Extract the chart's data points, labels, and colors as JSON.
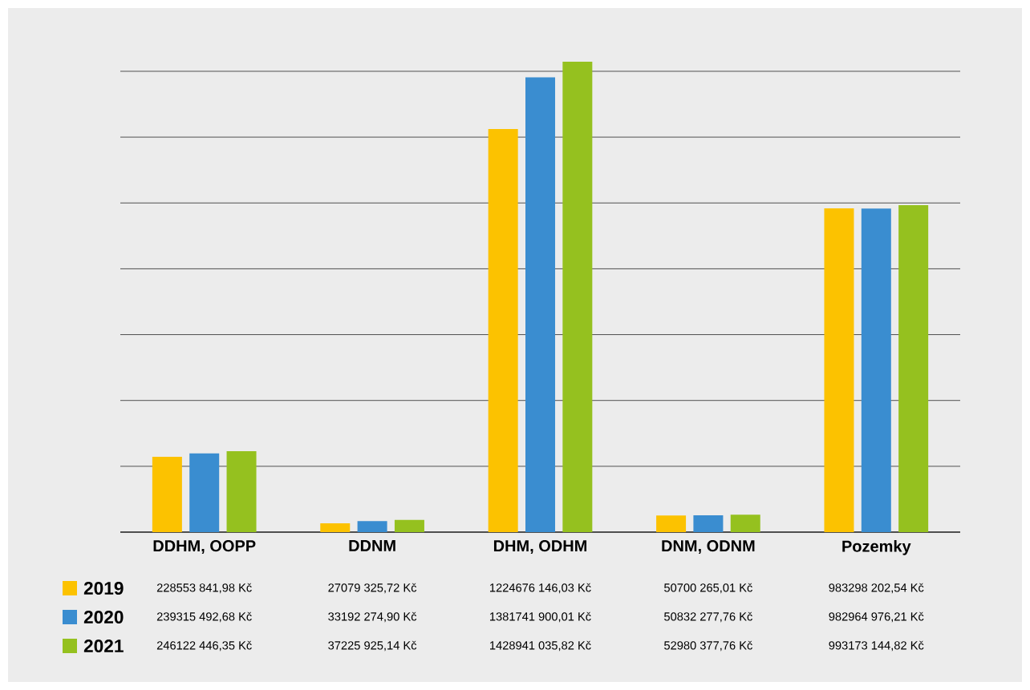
{
  "chart_data": {
    "type": "bar",
    "categories": [
      "DDHM, OOPP",
      "DDNM",
      "DHM, ODHM",
      "DNM, ODNM",
      "Pozemky"
    ],
    "series": [
      {
        "name": "2019",
        "color": "#fcc200",
        "values": [
          228553841.98,
          27079325.72,
          1224676146.03,
          50700265.01,
          983298202.54
        ],
        "value_labels": [
          "228553 841,98 Kč",
          "27079 325,72 Kč",
          "1224676 146,03 Kč",
          "50700 265,01 Kč",
          "983298 202,54 Kč"
        ]
      },
      {
        "name": "2020",
        "color": "#3a8dd0",
        "values": [
          239315492.68,
          33192274.9,
          1381741900.01,
          50832277.76,
          982964976.21
        ],
        "value_labels": [
          "239315 492,68 Kč",
          "33192 274,90 Kč",
          "1381741 900,01 Kč",
          "50832 277,76 Kč",
          "982964 976,21 Kč"
        ]
      },
      {
        "name": "2021",
        "color": "#95c11f",
        "values": [
          246122446.35,
          37225925.14,
          1428941035.82,
          52980377.76,
          993173144.82
        ],
        "value_labels": [
          "246122 446,35 Kč",
          "37225 925,14 Kč",
          "1428941 035,82 Kč",
          "52980 377,76 Kč",
          "993173 144,82 Kč"
        ]
      }
    ],
    "yticks": [
      {
        "value": 0,
        "label": null
      },
      {
        "value": 200000000,
        "label": null
      },
      {
        "value": 400000000,
        "label": null
      },
      {
        "value": 600000000,
        "label": null
      },
      {
        "value": 800000000,
        "label": null
      },
      {
        "value": 1000000000,
        "label": null
      },
      {
        "value": 1200000000,
        "label": null
      },
      {
        "value": 1400000000,
        "label": null
      }
    ],
    "grid": "y",
    "legend": "bottom left",
    "tick_labels": "x"
  }
}
